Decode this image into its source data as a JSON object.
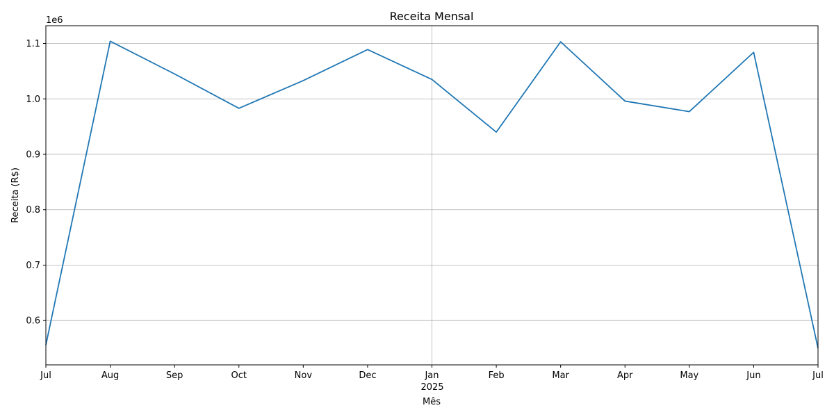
{
  "chart_data": {
    "type": "line",
    "title": "Receita Mensal",
    "xlabel": "Mês",
    "ylabel": "Receita (R$)",
    "y_offset_label": "1e6",
    "x": [
      "2024-07",
      "2024-08",
      "2024-09",
      "2024-10",
      "2024-11",
      "2024-12",
      "2025-01",
      "2025-02",
      "2025-03",
      "2025-04",
      "2025-05",
      "2025-06",
      "2025-07"
    ],
    "x_tick_labels": [
      "Jul",
      "Aug",
      "Sep",
      "Oct",
      "Nov",
      "Dec",
      "Jan",
      "Feb",
      "Mar",
      "Apr",
      "May",
      "Jun",
      "Jul"
    ],
    "x_year_label": "2025",
    "series": [
      {
        "values": [
          556000,
          1104000,
          1045000,
          983000,
          1033000,
          1089000,
          1035000,
          940000,
          1103000,
          996000,
          977000,
          1084000,
          550000
        ]
      }
    ],
    "ylim": [
      520000,
      1132000
    ],
    "y_ticks": [
      600000,
      700000,
      800000,
      900000,
      1000000,
      1100000
    ],
    "y_tick_labels": [
      "0.6",
      "0.7",
      "0.8",
      "0.9",
      "1.0",
      "1.1"
    ],
    "grid": true,
    "colors": {
      "line": "#1f77b4",
      "grid": "#b0b0b0",
      "axis": "#000000"
    }
  }
}
